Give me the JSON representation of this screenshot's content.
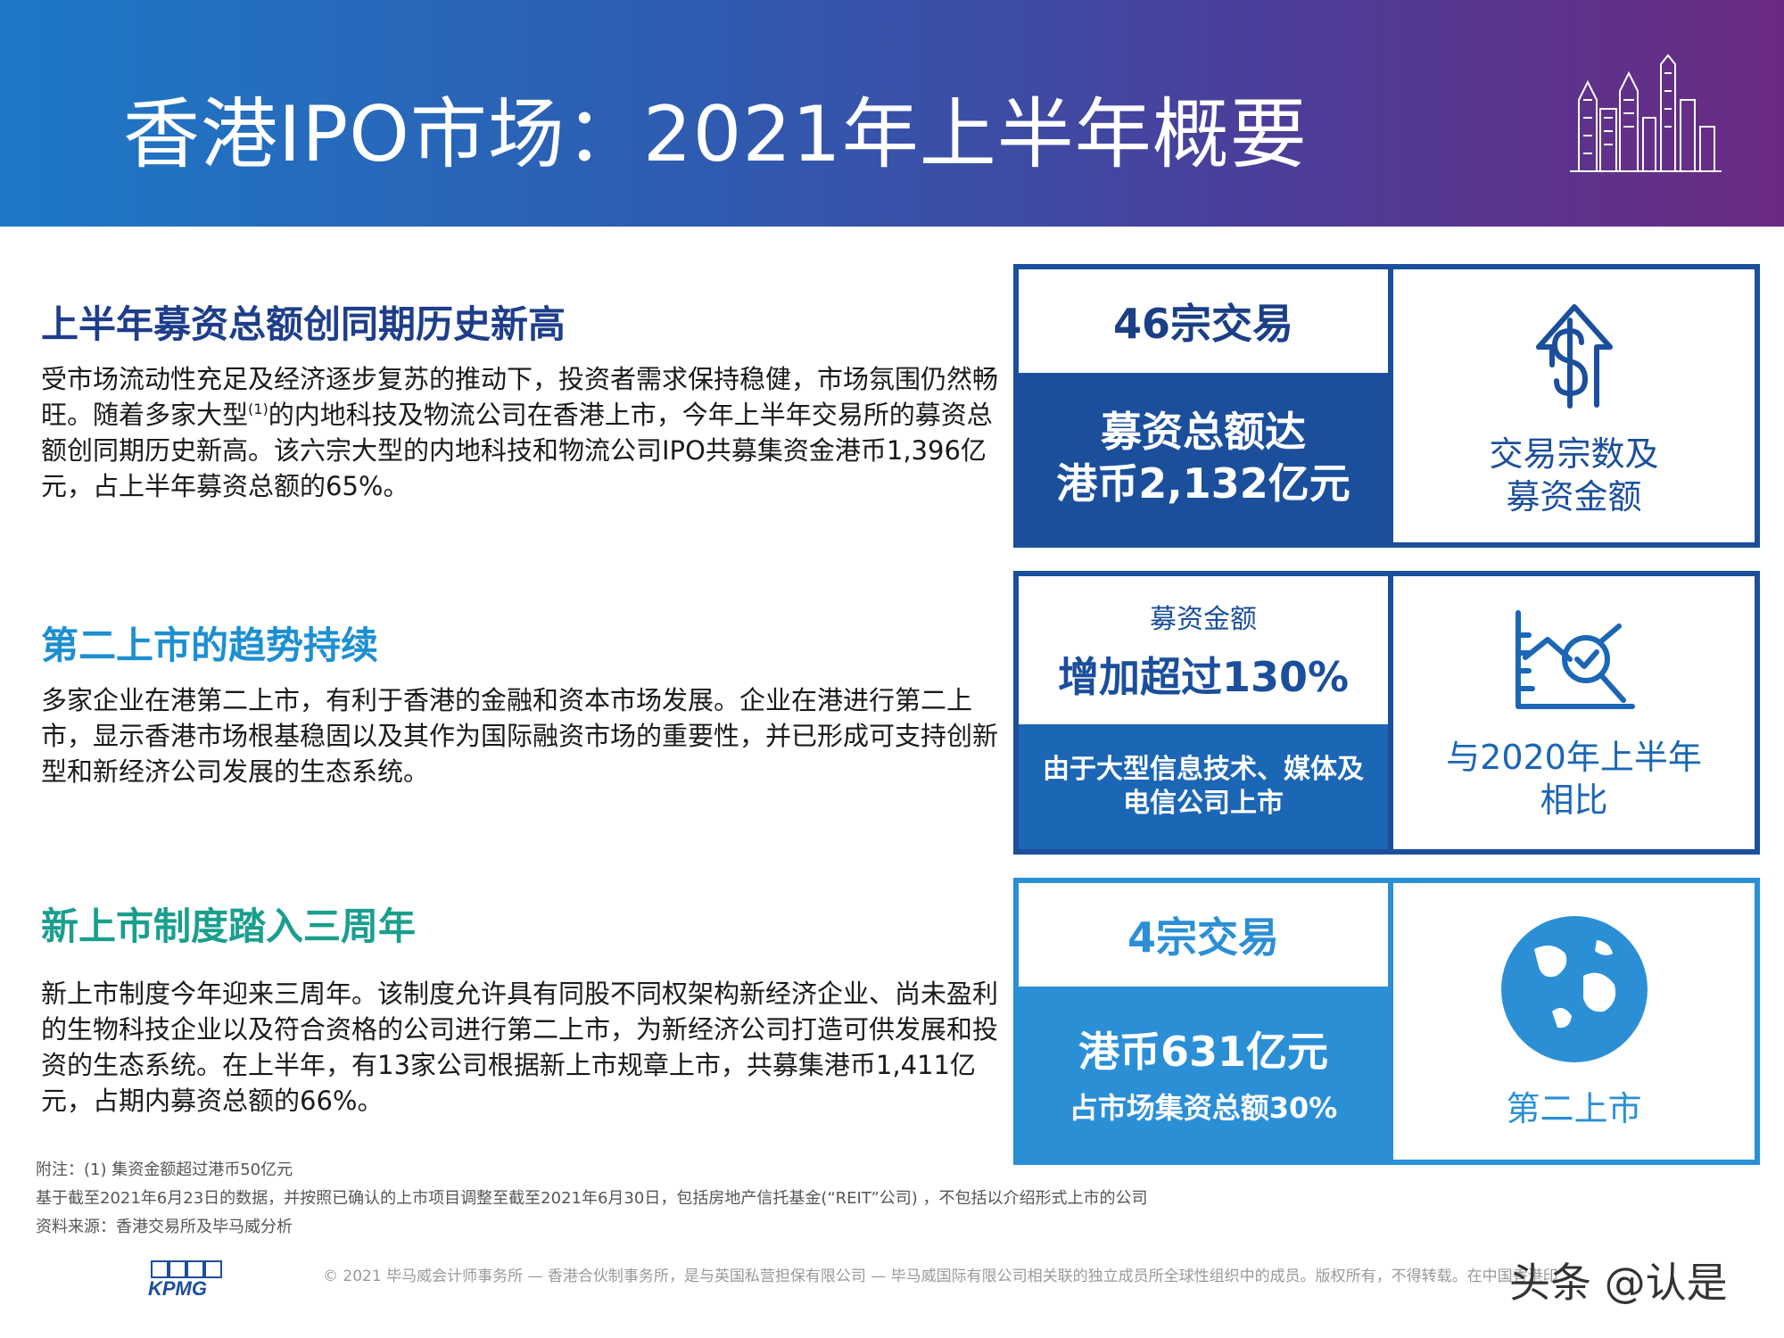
{
  "header": {
    "title": "香港IPO市场：2021年上半年概要"
  },
  "sections": [
    {
      "heading": "上半年募资总额创同期历史新高",
      "body_part1": "受市场流动性充足及经济逐步复苏的推动下，投资者需求保持稳健，市场氛围仍然畅旺。随着多家大型",
      "superscript": "(1)",
      "body_part2": "的内地科技及物流公司在香港上市，今年上半年交易所的募资总额创同期历史新高。该六宗大型的内地科技和物流公司IPO共募集资金港币1,396亿元，占上半年募资总额的65%。"
    },
    {
      "heading": "第二上市的趋势持续",
      "body": "多家企业在港第二上市，有利于香港的金融和资本市场发展。企业在港进行第二上市，显示香港市场根基稳固以及其作为国际融资市场的重要性，并已形成可支持创新型和新经济公司发展的生态系统。"
    },
    {
      "heading": "新上市制度踏入三周年",
      "body": "新上市制度今年迎来三周年。该制度允许具有同股不同权架构新经济企业、尚未盈利的生物科技企业以及符合资格的公司进行第二上市，为新经济公司打造可供发展和投资的生态系统。在上半年，有13家公司根据新上市规章上市，共募集港币1,411亿元，占期内募资总额的66%。"
    }
  ],
  "cards": [
    {
      "top": "46宗交易",
      "bottom_line1": "募资总额达",
      "bottom_line2": "港币2,132亿元",
      "right_line1": "交易宗数及",
      "right_line2": "募资金额",
      "icon": "dollar-up-arrow-icon"
    },
    {
      "top_small": "募资金额",
      "top_big": "增加超过130%",
      "bottom_line1": "由于大型信息技术、媒体及",
      "bottom_line2": "电信公司上市",
      "right_line1": "与2020年上半年",
      "right_line2": "相比",
      "icon": "chart-magnifier-icon"
    },
    {
      "top": "4宗交易",
      "bottom_big": "港币631亿元",
      "bottom_small": "占市场集资总额30%",
      "right": "第二上市",
      "icon": "globe-icon"
    }
  ],
  "notes": [
    "附注：(1) 集资金额超过港币50亿元",
    "基于截至2021年6月23日的数据，并按照已确认的上市项目调整至截至2021年6月30日，包括房地产信托基金(“REIT”公司) ，不包括以介绍形式上市的公司",
    "资料来源：香港交易所及毕马威分析"
  ],
  "footer": {
    "logo_text": "KPMG",
    "copyright": "© 2021 毕马威会计师事务所 — 香港合伙制事务所，是与英国私营担保有限公司 — 毕马威国际有限公司相关联的独立成员所全球性组织中的成员。版权所有，不得转载。在中国香港印",
    "watermark": "头条 @认是"
  },
  "colors": {
    "dark_blue": "#1b4f9c",
    "mid_blue": "#1b66b5",
    "light_blue": "#2b8fd6",
    "teal": "#1a9e8e"
  }
}
